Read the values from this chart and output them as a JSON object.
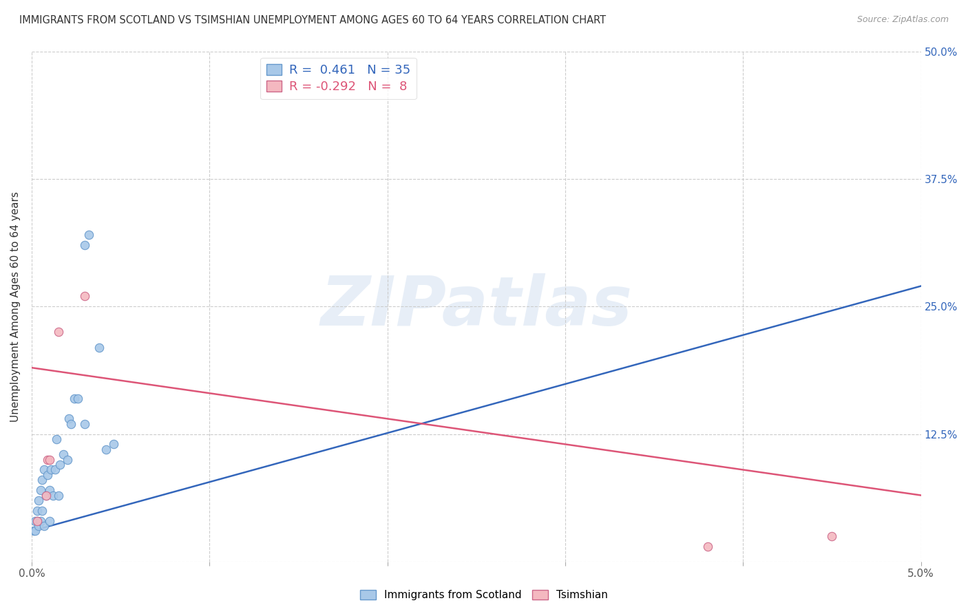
{
  "title": "IMMIGRANTS FROM SCOTLAND VS TSIMSHIAN UNEMPLOYMENT AMONG AGES 60 TO 64 YEARS CORRELATION CHART",
  "source": "Source: ZipAtlas.com",
  "ylabel": "Unemployment Among Ages 60 to 64 years",
  "xlim": [
    0.0,
    0.05
  ],
  "ylim": [
    0.0,
    0.5
  ],
  "xticks": [
    0.0,
    0.01,
    0.02,
    0.03,
    0.04,
    0.05
  ],
  "xticklabels": [
    "0.0%",
    "",
    "",
    "",
    "",
    "5.0%"
  ],
  "yticks": [
    0.0,
    0.125,
    0.25,
    0.375,
    0.5
  ],
  "yticklabels_left": [
    "",
    "",
    "",
    "",
    ""
  ],
  "yticklabels_right": [
    "",
    "12.5%",
    "25.0%",
    "37.5%",
    "50.0%"
  ],
  "scotland_color": "#a8c8e8",
  "scotland_edge_color": "#6699cc",
  "tsimshian_color": "#f4b8c0",
  "tsimshian_edge_color": "#cc6688",
  "trendline_scotland_color": "#3366bb",
  "trendline_tsimshian_color": "#dd5577",
  "scotland_R": 0.461,
  "scotland_N": 35,
  "tsimshian_R": -0.292,
  "tsimshian_N": 8,
  "background_color": "#ffffff",
  "grid_color": "#cccccc",
  "watermark": "ZIPatlas",
  "scotland_x": [
    0.0001,
    0.0002,
    0.0002,
    0.0003,
    0.0003,
    0.0004,
    0.0004,
    0.0005,
    0.0005,
    0.0006,
    0.0006,
    0.0007,
    0.0007,
    0.0008,
    0.0009,
    0.001,
    0.001,
    0.0011,
    0.0012,
    0.0013,
    0.0014,
    0.0015,
    0.0016,
    0.0018,
    0.002,
    0.0021,
    0.0022,
    0.0024,
    0.0026,
    0.003,
    0.003,
    0.0032,
    0.0038,
    0.0042,
    0.0046
  ],
  "scotland_y": [
    0.03,
    0.03,
    0.04,
    0.04,
    0.05,
    0.035,
    0.06,
    0.04,
    0.07,
    0.05,
    0.08,
    0.035,
    0.09,
    0.065,
    0.085,
    0.04,
    0.07,
    0.09,
    0.065,
    0.09,
    0.12,
    0.065,
    0.095,
    0.105,
    0.1,
    0.14,
    0.135,
    0.16,
    0.16,
    0.31,
    0.135,
    0.32,
    0.21,
    0.11,
    0.115
  ],
  "tsimshian_x": [
    0.0003,
    0.0008,
    0.0009,
    0.001,
    0.0015,
    0.003,
    0.038,
    0.045
  ],
  "tsimshian_y": [
    0.04,
    0.065,
    0.1,
    0.1,
    0.225,
    0.26,
    0.015,
    0.025
  ],
  "scotland_trendline_x": [
    0.0,
    0.05
  ],
  "scotland_trendline_y": [
    0.03,
    0.27
  ],
  "tsimshian_trendline_x": [
    0.0,
    0.05
  ],
  "tsimshian_trendline_y": [
    0.19,
    0.065
  ]
}
